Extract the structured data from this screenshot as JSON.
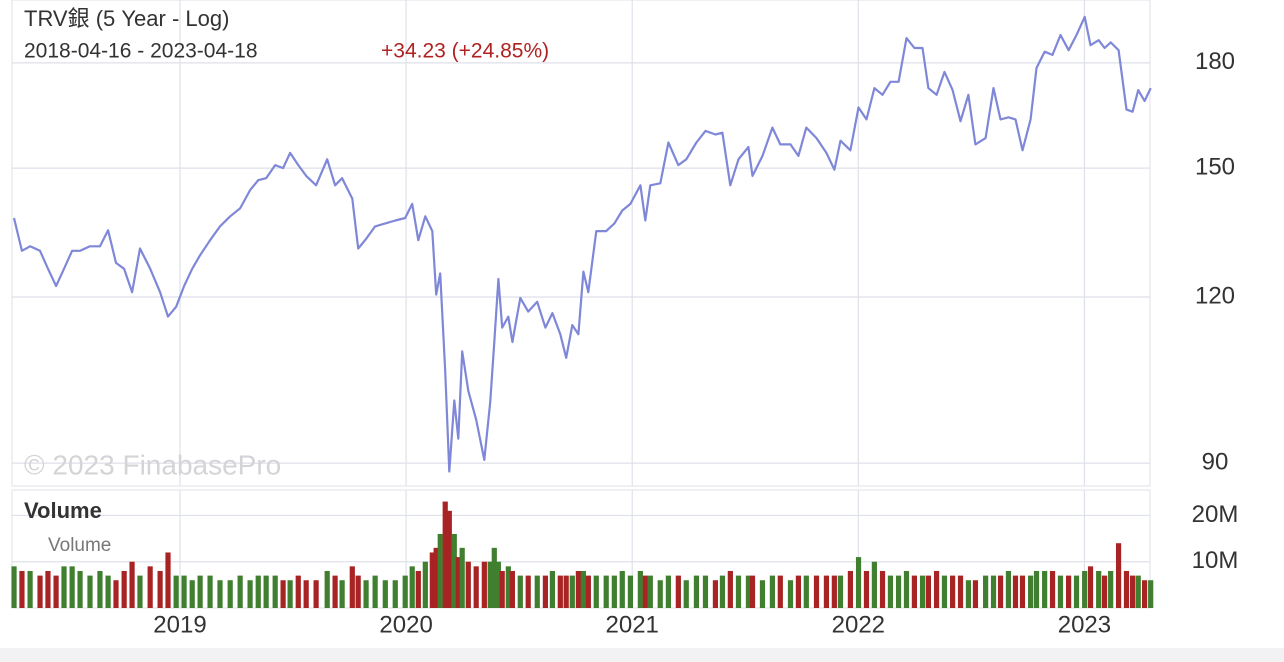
{
  "chart_data": {
    "type": "line",
    "title": "TRV銀 (5 Year - Log)",
    "subtitle": "2018-04-16 - 2023-04-18",
    "change_label": "+34.23 (+24.85%)",
    "annotation": "© 2023 FinabasePro",
    "volume_title": "Volume",
    "log_scale": true,
    "grid": true,
    "xlim": [
      2018.257,
      2023.29
    ],
    "xticks": [
      2019,
      2020,
      2021,
      2022,
      2023
    ],
    "ylim": [
      86.5,
      200.7
    ],
    "yticks": [
      90,
      120,
      150,
      180
    ],
    "y2lim": [
      0,
      25500000
    ],
    "y2ticks": [
      {
        "value": 10000000,
        "label": "10M"
      },
      {
        "value": 20000000,
        "label": "20M"
      }
    ],
    "x": [
      2018.266,
      2018.301,
      2018.337,
      2018.381,
      2018.416,
      2018.452,
      2018.487,
      2018.523,
      2018.558,
      2018.602,
      2018.646,
      2018.682,
      2018.717,
      2018.753,
      2018.788,
      2018.823,
      2018.868,
      2018.912,
      2018.947,
      2018.983,
      2019.018,
      2019.054,
      2019.089,
      2019.133,
      2019.177,
      2019.222,
      2019.266,
      2019.31,
      2019.346,
      2019.381,
      2019.421,
      2019.456,
      2019.487,
      2019.523,
      2019.558,
      2019.602,
      2019.651,
      2019.686,
      2019.717,
      2019.762,
      2019.788,
      2019.823,
      2019.863,
      2019.908,
      2019.952,
      2019.996,
      2020.027,
      2020.054,
      2020.085,
      2020.116,
      2020.133,
      2020.151,
      2020.173,
      2020.191,
      2020.213,
      2020.231,
      2020.248,
      2020.275,
      2020.31,
      2020.346,
      2020.372,
      2020.39,
      2020.408,
      2020.425,
      2020.452,
      2020.47,
      2020.505,
      2020.54,
      2020.58,
      2020.616,
      2020.647,
      2020.682,
      2020.708,
      2020.735,
      2020.762,
      2020.784,
      2020.806,
      2020.841,
      2020.885,
      2020.921,
      2020.956,
      2020.992,
      2021.036,
      2021.058,
      2021.08,
      2021.124,
      2021.16,
      2021.204,
      2021.239,
      2021.284,
      2021.324,
      2021.368,
      2021.399,
      2021.434,
      2021.47,
      2021.514,
      2021.532,
      2021.576,
      2021.62,
      2021.655,
      2021.7,
      2021.735,
      2021.77,
      2021.815,
      2021.859,
      2021.894,
      2021.921,
      2021.965,
      2022.001,
      2022.036,
      2022.071,
      2022.107,
      2022.142,
      2022.178,
      2022.213,
      2022.248,
      2022.284,
      2022.31,
      2022.346,
      2022.381,
      2022.417,
      2022.452,
      2022.487,
      2022.518,
      2022.563,
      2022.598,
      2022.629,
      2022.664,
      2022.695,
      2022.726,
      2022.762,
      2022.788,
      2022.824,
      2022.859,
      2022.894,
      2022.93,
      2022.965,
      2023.001,
      2023.027,
      2023.063,
      2023.089,
      2023.116,
      2023.151,
      2023.186,
      2023.213,
      2023.238,
      2023.266,
      2023.293
    ],
    "series": [
      {
        "color": "#7f87d8",
        "values": [
          137.6,
          130,
          131,
          130,
          126,
          122.3,
          126,
          130,
          130,
          131,
          131,
          134.7,
          127.3,
          126,
          121,
          130.5,
          126,
          121,
          116,
          118,
          122.3,
          126,
          129,
          132.4,
          135.6,
          138,
          139.9,
          144.4,
          146.9,
          147.4,
          150.8,
          150,
          154,
          150.8,
          148,
          145.6,
          152.3,
          145.6,
          147.4,
          142.3,
          130.5,
          132.7,
          135.6,
          136.3,
          137,
          137.6,
          141,
          132.4,
          138,
          134.5,
          120.5,
          125,
          105.6,
          88.7,
          100.3,
          93.9,
          109.2,
          102,
          97,
          90.5,
          100,
          111,
          123.8,
          113.8,
          116,
          111,
          119.8,
          117,
          119,
          113.8,
          116.7,
          112.5,
          108,
          114.3,
          112.5,
          125.4,
          121,
          134.5,
          134.5,
          136.3,
          139.4,
          141,
          145.6,
          137,
          145.6,
          146.1,
          156.8,
          150.8,
          152.3,
          156.8,
          160,
          159,
          159.5,
          145.6,
          152.3,
          155.6,
          148,
          153.2,
          160.9,
          156.3,
          156.3,
          153.2,
          160.9,
          158,
          154,
          149.6,
          157.3,
          154.7,
          166.6,
          163.2,
          172.3,
          170.3,
          174.2,
          174.2,
          187.9,
          184.7,
          184.7,
          172.3,
          170.3,
          177.2,
          171.7,
          162.7,
          170.3,
          156.3,
          158,
          172.3,
          163.2,
          163.8,
          163.2,
          154.7,
          163.2,
          178.4,
          183.5,
          182.5,
          188.9,
          184,
          188.9,
          194.9,
          185.6,
          187.2,
          184.7,
          186.5,
          184,
          166,
          165.4,
          171.7,
          168.5,
          172.3
        ]
      },
      {
        "name": "Volume",
        "type": "bar",
        "axis": "y2",
        "up_color": "#3f7f2f",
        "down_color": "#a82424",
        "values": [
          9000000.0,
          8000000.0,
          8000000.0,
          7000000.0,
          8000000.0,
          7000000.0,
          9000000.0,
          9000000.0,
          8000000.0,
          7000000.0,
          8000000.0,
          7000000.0,
          6000000.0,
          8000000.0,
          10000000.0,
          7000000.0,
          9000000.0,
          8000000.0,
          12000000.0,
          7000000.0,
          7000000.0,
          6000000.0,
          7000000.0,
          7000000.0,
          6000000.0,
          6000000.0,
          7000000.0,
          6000000.0,
          7000000.0,
          7000000.0,
          7000000.0,
          6000000.0,
          6000000.0,
          7000000.0,
          6000000.0,
          6000000.0,
          8000000.0,
          7000000.0,
          6000000.0,
          9000000.0,
          7000000.0,
          6000000.0,
          7000000.0,
          6000000.0,
          6000000.0,
          7000000.0,
          9000000.0,
          8000000.0,
          10000000.0,
          12000000.0,
          13000000.0,
          16000000.0,
          23000000.0,
          21000000.0,
          16000000.0,
          11000000.0,
          13000000.0,
          10000000.0,
          9000000.0,
          10000000.0,
          10000000.0,
          13000000.0,
          10000000.0,
          8000000.0,
          9000000.0,
          8000000.0,
          7000000.0,
          7000000.0,
          7000000.0,
          7000000.0,
          8000000.0,
          7000000.0,
          7000000.0,
          7000000.0,
          8000000.0,
          8000000.0,
          7000000.0,
          7000000.0,
          7000000.0,
          7000000.0,
          8000000.0,
          7000000.0,
          8000000.0,
          7000000.0,
          7000000.0,
          6000000.0,
          7000000.0,
          7000000.0,
          6000000.0,
          7000000.0,
          7000000.0,
          6000000.0,
          7000000.0,
          8000000.0,
          7000000.0,
          7000000.0,
          7000000.0,
          6000000.0,
          7000000.0,
          7000000.0,
          6000000.0,
          7000000.0,
          7000000.0,
          7000000.0,
          7000000.0,
          7000000.0,
          7000000.0,
          8000000.0,
          11000000.0,
          8000000.0,
          10000000.0,
          8000000.0,
          7000000.0,
          7000000.0,
          8000000.0,
          7000000.0,
          7000000.0,
          7000000.0,
          8000000.0,
          7000000.0,
          7000000.0,
          7000000.0,
          6000000.0,
          6000000.0,
          7000000.0,
          7000000.0,
          7000000.0,
          8000000.0,
          7000000.0,
          7000000.0,
          7000000.0,
          8000000.0,
          8000000.0,
          8000000.0,
          7000000.0,
          7000000.0,
          7000000.0,
          8000000.0,
          9000000.0,
          8000000.0,
          7000000.0,
          8000000.0,
          14000000.0,
          8000000.0,
          7000000.0,
          7000000.0,
          6000000.0,
          6000000.0
        ]
      }
    ]
  }
}
